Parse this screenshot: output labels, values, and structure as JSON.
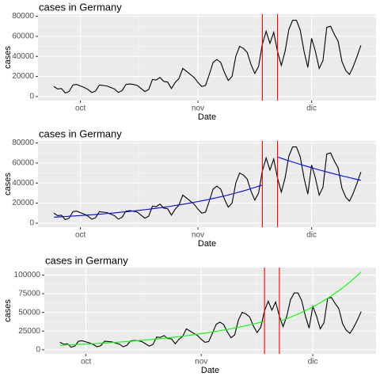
{
  "chart_data": [
    {
      "type": "line",
      "title": "cases in Germany",
      "x_label": "Date",
      "y_label": "cases",
      "categories": [
        null,
        null,
        null,
        null,
        null,
        null,
        null,
        "oct",
        null,
        null,
        null,
        null,
        null,
        null,
        null,
        null,
        null,
        null,
        null,
        null,
        null,
        null,
        null,
        null,
        null,
        null,
        null,
        null,
        null,
        null,
        null,
        null,
        null,
        null,
        null,
        null,
        null,
        null,
        "nov",
        null,
        null,
        null,
        null,
        null,
        null,
        null,
        null,
        null,
        null,
        null,
        null,
        null,
        null,
        null,
        null,
        null,
        null,
        null,
        null,
        null,
        null,
        null,
        null,
        null,
        null,
        null,
        null,
        null,
        "dic",
        null,
        null,
        null,
        null,
        null,
        null,
        null,
        null,
        null,
        null,
        null,
        null,
        null
      ],
      "series": [
        {
          "color": "#000000",
          "values": [
            10000,
            7500,
            8000,
            3500,
            5000,
            11500,
            12000,
            10500,
            9000,
            7000,
            4000,
            5500,
            11500,
            11000,
            10500,
            9000,
            7500,
            4000,
            6000,
            12000,
            12500,
            12000,
            11000,
            8000,
            5000,
            7000,
            17000,
            16500,
            19000,
            15000,
            14500,
            8000,
            14000,
            18000,
            28000,
            25000,
            22000,
            19000,
            14000,
            10000,
            11000,
            22000,
            34000,
            37000,
            34000,
            24000,
            16000,
            20000,
            40000,
            50000,
            48000,
            44000,
            32000,
            23000,
            30000,
            52000,
            65000,
            53000,
            64000,
            45000,
            31000,
            45000,
            67000,
            76000,
            76000,
            66000,
            45000,
            29000,
            58000,
            45000,
            28000,
            36000,
            69000,
            70000,
            62000,
            55000,
            35000,
            26000,
            22000,
            30000,
            40000,
            51000
          ]
        }
      ],
      "vlines": [
        55,
        59
      ],
      "vline_color": "#ff0000",
      "xlim": [
        -4.2,
        85
      ],
      "ylim": [
        -4000,
        82000
      ],
      "yticks": [
        0,
        20000,
        40000,
        60000,
        80000
      ],
      "grid": true
    },
    {
      "type": "line",
      "title": "cases in Germany",
      "x_label": "Date",
      "y_label": "cases",
      "categories": [
        null,
        null,
        null,
        null,
        null,
        null,
        null,
        "oct",
        null,
        null,
        null,
        null,
        null,
        null,
        null,
        null,
        null,
        null,
        null,
        null,
        null,
        null,
        null,
        null,
        null,
        null,
        null,
        null,
        null,
        null,
        null,
        null,
        null,
        null,
        null,
        null,
        null,
        null,
        "nov",
        null,
        null,
        null,
        null,
        null,
        null,
        null,
        null,
        null,
        null,
        null,
        null,
        null,
        null,
        null,
        null,
        null,
        null,
        null,
        null,
        null,
        null,
        null,
        null,
        null,
        null,
        null,
        null,
        null,
        "dic",
        null,
        null,
        null,
        null,
        null,
        null,
        null,
        null,
        null,
        null,
        null,
        null,
        null
      ],
      "series": [
        {
          "color": "#000000",
          "values": [
            10000,
            7500,
            8000,
            3500,
            5000,
            11500,
            12000,
            10500,
            9000,
            7000,
            4000,
            5500,
            11500,
            11000,
            10500,
            9000,
            7500,
            4000,
            6000,
            12000,
            12500,
            12000,
            11000,
            8000,
            5000,
            7000,
            17000,
            16500,
            19000,
            15000,
            14500,
            8000,
            14000,
            18000,
            28000,
            25000,
            22000,
            19000,
            14000,
            10000,
            11000,
            22000,
            34000,
            37000,
            34000,
            24000,
            16000,
            20000,
            40000,
            50000,
            48000,
            44000,
            32000,
            23000,
            30000,
            52000,
            65000,
            53000,
            64000,
            45000,
            31000,
            45000,
            67000,
            76000,
            76000,
            66000,
            45000,
            29000,
            58000,
            45000,
            28000,
            36000,
            69000,
            70000,
            62000,
            55000,
            35000,
            26000,
            22000,
            30000,
            40000,
            51000
          ]
        },
        {
          "color": "#0000ff",
          "values": [
            6000,
            6220,
            6440,
            6660,
            6880,
            7100,
            7360,
            7620,
            7880,
            8140,
            8390,
            8700,
            9000,
            9310,
            9620,
            9930,
            10290,
            10650,
            11010,
            11370,
            11740,
            12170,
            12600,
            13030,
            13460,
            13890,
            14400,
            14900,
            15410,
            15910,
            16420,
            17020,
            17620,
            18220,
            18820,
            19420,
            20130,
            20840,
            21550,
            22260,
            22970,
            23810,
            24650,
            25490,
            26330,
            27170,
            28160,
            29150,
            30140,
            31140,
            32130,
            33300,
            34480,
            35650,
            36830,
            38000,
            null,
            null,
            null,
            66000,
            64700,
            63400,
            62200,
            61000,
            59800,
            58600,
            57500,
            56400,
            55300,
            54200,
            53100,
            52100,
            51100,
            50100,
            49100,
            48100,
            47200,
            46300,
            45400,
            44500,
            43600,
            42700
          ]
        }
      ],
      "vlines": [
        55,
        59
      ],
      "vline_color": "#ff0000",
      "xlim": [
        -4.2,
        85
      ],
      "ylim": [
        -4000,
        82000
      ],
      "yticks": [
        0,
        20000,
        40000,
        60000,
        80000
      ],
      "grid": true
    },
    {
      "type": "line",
      "title": "cases in Germany",
      "x_label": "Date",
      "y_label": "cases",
      "categories": [
        null,
        null,
        null,
        null,
        null,
        null,
        null,
        "oct",
        null,
        null,
        null,
        null,
        null,
        null,
        null,
        null,
        null,
        null,
        null,
        null,
        null,
        null,
        null,
        null,
        null,
        null,
        null,
        null,
        null,
        null,
        null,
        null,
        null,
        null,
        null,
        null,
        null,
        null,
        "nov",
        null,
        null,
        null,
        null,
        null,
        null,
        null,
        null,
        null,
        null,
        null,
        null,
        null,
        null,
        null,
        null,
        null,
        null,
        null,
        null,
        null,
        null,
        null,
        null,
        null,
        null,
        null,
        null,
        null,
        "dic",
        null,
        null,
        null,
        null,
        null,
        null,
        null,
        null,
        null,
        null,
        null,
        null,
        null
      ],
      "series": [
        {
          "color": "#000000",
          "values": [
            10000,
            7500,
            8000,
            3500,
            5000,
            11500,
            12000,
            10500,
            9000,
            7000,
            4000,
            5500,
            11500,
            11000,
            10500,
            9000,
            7500,
            4000,
            6000,
            12000,
            12500,
            12000,
            11000,
            8000,
            5000,
            7000,
            17000,
            16500,
            19000,
            15000,
            14500,
            8000,
            14000,
            18000,
            28000,
            25000,
            22000,
            19000,
            14000,
            10000,
            11000,
            22000,
            34000,
            37000,
            34000,
            24000,
            16000,
            20000,
            40000,
            50000,
            48000,
            44000,
            32000,
            23000,
            30000,
            52000,
            65000,
            53000,
            64000,
            45000,
            31000,
            45000,
            67000,
            76000,
            76000,
            66000,
            45000,
            29000,
            58000,
            45000,
            28000,
            36000,
            69000,
            70000,
            62000,
            55000,
            35000,
            26000,
            22000,
            30000,
            40000,
            51000
          ]
        },
        {
          "color": "#00ff00",
          "values": [
            6000,
            6220,
            6440,
            6660,
            6880,
            7100,
            7360,
            7620,
            7880,
            8140,
            8390,
            8700,
            9000,
            9310,
            9620,
            9930,
            10290,
            10650,
            11010,
            11370,
            11740,
            12170,
            12600,
            13030,
            13460,
            13890,
            14400,
            14900,
            15410,
            15910,
            16420,
            17020,
            17620,
            18220,
            18820,
            19420,
            20130,
            20840,
            21550,
            22260,
            22970,
            23810,
            24650,
            25490,
            26330,
            27170,
            28160,
            29150,
            30140,
            31140,
            32130,
            33300,
            34480,
            35650,
            36830,
            38000,
            null,
            null,
            null,
            38000,
            39780,
            41650,
            43600,
            45650,
            47790,
            50030,
            52380,
            54840,
            57410,
            60100,
            62920,
            65870,
            68960,
            72200,
            75580,
            79130,
            82840,
            86730,
            90800,
            95060,
            99520,
            104190
          ]
        }
      ],
      "vlines": [
        55,
        59
      ],
      "vline_color": "#ff0000",
      "xlim": [
        -4.2,
        85
      ],
      "ylim": [
        -5500,
        110000
      ],
      "yticks": [
        0,
        25000,
        50000,
        75000,
        100000
      ],
      "grid": true
    }
  ]
}
